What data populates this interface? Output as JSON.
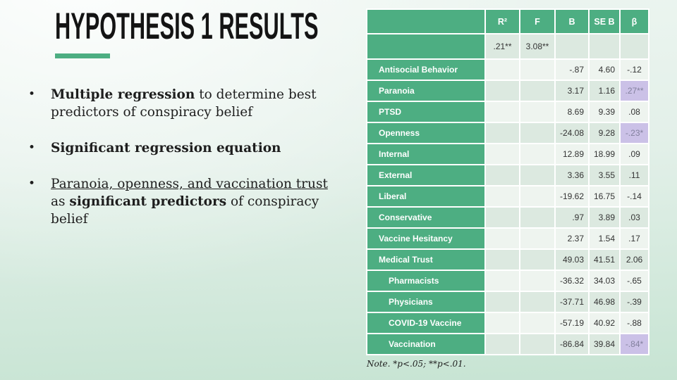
{
  "slide": {
    "title": "HYPOTHESIS 1 RESULTS",
    "bullet_char": "•",
    "bullets": [
      {
        "segments": [
          {
            "text": "Multiple regression",
            "bold": true
          },
          {
            "text": " to determine best predictors of conspiracy belief"
          }
        ]
      },
      {
        "segments": [
          {
            "text": "Significant regression equation",
            "bold": true
          }
        ]
      },
      {
        "segments": [
          {
            "text": "Paranoia, openness, and vaccination trust",
            "underline": true
          },
          {
            "text": " as "
          },
          {
            "text": "significant predictors",
            "bold": true
          },
          {
            "text": " of conspiracy belief"
          }
        ]
      }
    ],
    "note": "Note. *p<.05; **p<.01."
  },
  "table": {
    "headers": [
      "",
      "R²",
      "F",
      "B",
      "SE B",
      "β"
    ],
    "stats_row": {
      "r2": ".21**",
      "f": "3.08**",
      "b": "",
      "se_b": "",
      "beta": ""
    },
    "rows": [
      {
        "label": "Antisocial Behavior",
        "indent": false,
        "b": "-.87",
        "se_b": "4.60",
        "beta": "-.12",
        "highlight": false
      },
      {
        "label": "Paranoia",
        "indent": false,
        "b": "3.17",
        "se_b": "1.16",
        "beta": ".27**",
        "highlight": true
      },
      {
        "label": "PTSD",
        "indent": false,
        "b": "8.69",
        "se_b": "9.39",
        "beta": ".08",
        "highlight": false
      },
      {
        "label": "Openness",
        "indent": false,
        "b": "-24.08",
        "se_b": "9.28",
        "beta": "-.23*",
        "highlight": true
      },
      {
        "label": "Internal",
        "indent": false,
        "b": "12.89",
        "se_b": "18.99",
        "beta": ".09",
        "highlight": false
      },
      {
        "label": "External",
        "indent": false,
        "b": "3.36",
        "se_b": "3.55",
        "beta": ".11",
        "highlight": false
      },
      {
        "label": "Liberal",
        "indent": false,
        "b": "-19.62",
        "se_b": "16.75",
        "beta": "-.14",
        "highlight": false
      },
      {
        "label": "Conservative",
        "indent": false,
        "b": ".97",
        "se_b": "3.89",
        "beta": ".03",
        "highlight": false
      },
      {
        "label": "Vaccine Hesitancy",
        "indent": false,
        "b": "2.37",
        "se_b": "1.54",
        "beta": ".17",
        "highlight": false
      },
      {
        "label": "Medical Trust",
        "indent": false,
        "b": "49.03",
        "se_b": "41.51",
        "beta": "2.06",
        "highlight": false
      },
      {
        "label": "Pharmacists",
        "indent": true,
        "b": "-36.32",
        "se_b": "34.03",
        "beta": "-.65",
        "highlight": false
      },
      {
        "label": "Physicians",
        "indent": true,
        "b": "-37.71",
        "se_b": "46.98",
        "beta": "-.39",
        "highlight": false
      },
      {
        "label": "COVID-19 Vaccine",
        "indent": true,
        "b": "-57.19",
        "se_b": "40.92",
        "beta": "-.88",
        "highlight": false
      },
      {
        "label": "Vaccination",
        "indent": true,
        "b": "-86.84",
        "se_b": "39.84",
        "beta": "-.84*",
        "highlight": true
      }
    ]
  },
  "colors": {
    "accent_green": "#4dae82",
    "row_band_dark": "#dce9e0",
    "row_band_light": "#eef4ef",
    "highlight_lavender": "#cbc1e7",
    "highlight_text": "#83819e",
    "title_text": "#141414",
    "background_bottom": "#c7e4d3"
  }
}
